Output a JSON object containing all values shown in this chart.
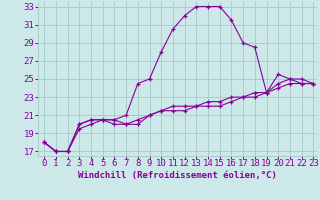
{
  "xlabel": "Windchill (Refroidissement éolien,°C)",
  "bg_color": "#cce8e8",
  "grid_color": "#aacccc",
  "line_color": "#880099",
  "xmin": 0,
  "xmax": 23,
  "ymin": 17,
  "ymax": 33,
  "yticks": [
    17,
    19,
    21,
    23,
    25,
    27,
    29,
    31,
    33
  ],
  "xticks": [
    0,
    1,
    2,
    3,
    4,
    5,
    6,
    7,
    8,
    9,
    10,
    11,
    12,
    13,
    14,
    15,
    16,
    17,
    18,
    19,
    20,
    21,
    22,
    23
  ],
  "series": [
    [
      0,
      1,
      2,
      3,
      4,
      5,
      6,
      7,
      8,
      9,
      10,
      11,
      12,
      13,
      14,
      15,
      16,
      17,
      18,
      19,
      20,
      21,
      22,
      23
    ],
    [
      18.0,
      17.0,
      17.0,
      20.0,
      20.5,
      20.5,
      20.5,
      21.0,
      24.5,
      25.0,
      28.0,
      30.5,
      32.0,
      33.0,
      33.0,
      33.0,
      31.5,
      29.0,
      28.5,
      23.5,
      25.5,
      25.0,
      24.5,
      24.5
    ],
    [
      18.0,
      17.0,
      17.0,
      20.0,
      20.5,
      20.5,
      20.5,
      20.0,
      20.0,
      21.0,
      21.5,
      22.0,
      22.0,
      22.0,
      22.5,
      22.5,
      23.0,
      23.0,
      23.5,
      23.5,
      24.0,
      24.5,
      24.5,
      24.5
    ],
    [
      18.0,
      17.0,
      17.0,
      19.5,
      20.0,
      20.5,
      20.0,
      20.0,
      20.5,
      21.0,
      21.5,
      21.5,
      21.5,
      22.0,
      22.0,
      22.0,
      22.5,
      23.0,
      23.0,
      23.5,
      24.5,
      25.0,
      25.0,
      24.5
    ]
  ],
  "tick_fontsize": 6.5,
  "xlabel_fontsize": 6.5
}
